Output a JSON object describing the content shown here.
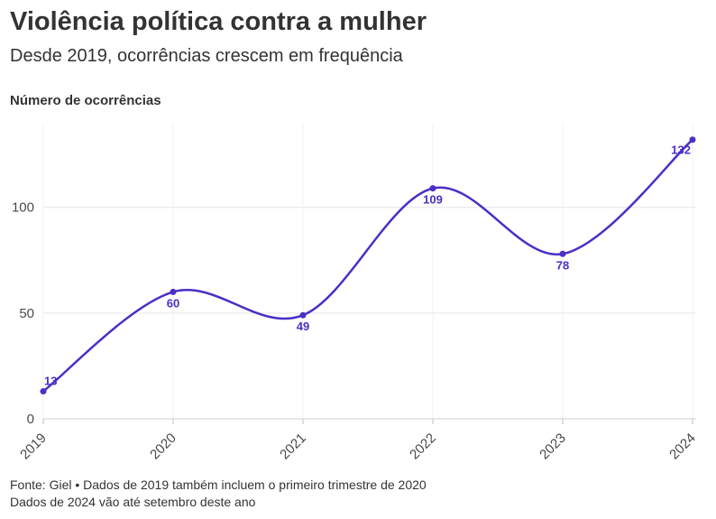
{
  "chart_data": {
    "type": "line",
    "title": "Violência política contra a mulher",
    "subtitle": "Desde 2019, ocorrências crescem em frequência",
    "xlabel": "",
    "ylabel": "Número de ocorrências",
    "categories": [
      "2019",
      "2020",
      "2021",
      "2022",
      "2023",
      "2024"
    ],
    "series": [
      {
        "name": "Ocorrências",
        "values": [
          13,
          60,
          49,
          109,
          78,
          132
        ]
      }
    ],
    "ylim": [
      0,
      140
    ],
    "yticks": [
      0,
      50,
      100
    ],
    "grid": true,
    "line_color": "#4b2fc6",
    "grid_color": "#e6e6e6"
  },
  "footer": {
    "line1": "Fonte: Giel • Dados de 2019 também incluem o primeiro trimestre de 2020",
    "line2": "Dados de 2024 vão até setembro deste ano"
  }
}
